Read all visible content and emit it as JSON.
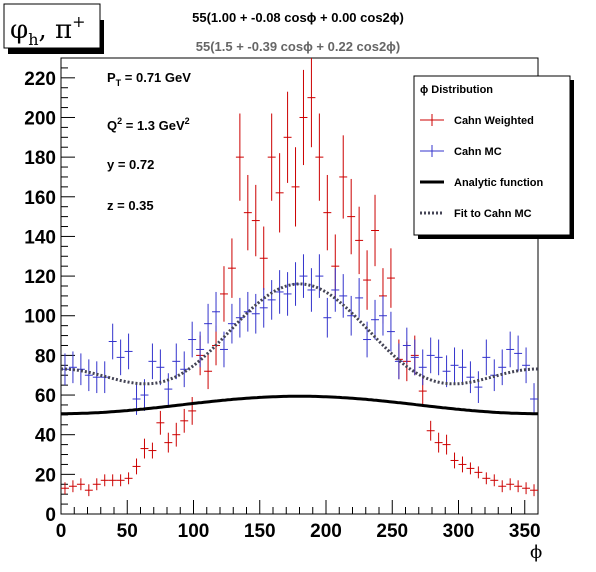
{
  "title_box": {
    "text": "φ",
    "sub": "h",
    "rest": ", π",
    "sup": "+"
  },
  "fit_labels": {
    "line1": "55(1.00 + -0.08 cosϕ + 0.00 cos2ϕ)",
    "line2": "55(1.5 + -0.39 cosϕ + 0.22 cos2ϕ)"
  },
  "annotations": {
    "pt": {
      "main": "P",
      "sub": "T",
      "rest": " = 0.71 GeV"
    },
    "q2": {
      "main": "Q",
      "sup": "2",
      "rest": " = 1.3 GeV",
      "sup2": "2"
    },
    "y": "y = 0.72",
    "z": "z = 0.35"
  },
  "legend": {
    "title": "ϕ Distribution",
    "entries": [
      "Cahn Weighted",
      "Cahn MC",
      "Analytic function",
      "Fit to Cahn MC"
    ]
  },
  "colors": {
    "red": "#cc0000",
    "blue": "#3333cc",
    "black": "#000000",
    "dotted": "#444455"
  },
  "chart_data": {
    "type": "scatter",
    "xlabel": "ϕ",
    "ylabel": "",
    "xlim": [
      0,
      360
    ],
    "ylim": [
      0,
      230
    ],
    "xticks": [
      0,
      50,
      100,
      150,
      200,
      250,
      300,
      350
    ],
    "yticks": [
      0,
      20,
      40,
      60,
      80,
      100,
      120,
      140,
      160,
      180,
      200,
      220
    ],
    "bin_width": 6,
    "x": [
      3,
      9,
      15,
      21,
      27,
      33,
      39,
      45,
      51,
      57,
      63,
      69,
      75,
      81,
      87,
      93,
      99,
      105,
      111,
      117,
      123,
      129,
      135,
      141,
      147,
      153,
      159,
      165,
      171,
      177,
      183,
      189,
      195,
      201,
      207,
      213,
      219,
      225,
      231,
      237,
      243,
      249,
      255,
      261,
      267,
      273,
      279,
      285,
      291,
      297,
      303,
      309,
      315,
      321,
      327,
      333,
      339,
      345,
      351,
      357
    ],
    "series": [
      {
        "name": "Cahn Weighted",
        "values": [
          13,
          14,
          15,
          12,
          15,
          17,
          17,
          17,
          18,
          24,
          33,
          32,
          46,
          36,
          40,
          47,
          52,
          80,
          72,
          85,
          111,
          124,
          180,
          152,
          148,
          129,
          180,
          162,
          190,
          165,
          200,
          210,
          180,
          152,
          125,
          170,
          150,
          138,
          118,
          143,
          110,
          119,
          78,
          77,
          80,
          62,
          42,
          36,
          35,
          27,
          25,
          23,
          21,
          18,
          17,
          14,
          15,
          14,
          13,
          12
        ],
        "errors": [
          3,
          3,
          3,
          3,
          3,
          3,
          3,
          3,
          3,
          4,
          5,
          4,
          6,
          5,
          6,
          6,
          7,
          10,
          9,
          10,
          14,
          15,
          22,
          19,
          18,
          16,
          22,
          20,
          23,
          20,
          24,
          25,
          22,
          19,
          16,
          21,
          19,
          17,
          15,
          18,
          14,
          15,
          10,
          10,
          10,
          8,
          5,
          5,
          5,
          4,
          4,
          3,
          3,
          3,
          3,
          3,
          3,
          3,
          3,
          3
        ]
      },
      {
        "name": "Cahn MC",
        "values": [
          73,
          74,
          73,
          70,
          69,
          69,
          87,
          79,
          82,
          58,
          60,
          77,
          74,
          63,
          77,
          73,
          88,
          83,
          96,
          102,
          83,
          96,
          99,
          102,
          101,
          104,
          108,
          112,
          111,
          116,
          120,
          113,
          120,
          99,
          113,
          110,
          100,
          109,
          88,
          98,
          100,
          92,
          77,
          85,
          79,
          74,
          80,
          79,
          72,
          75,
          74,
          69,
          64,
          79,
          70,
          74,
          83,
          81,
          75,
          58
        ],
        "errors": [
          8,
          8,
          8,
          8,
          8,
          8,
          9,
          9,
          9,
          8,
          8,
          9,
          9,
          8,
          9,
          9,
          9,
          9,
          10,
          10,
          9,
          10,
          10,
          10,
          10,
          10,
          10,
          11,
          11,
          11,
          11,
          11,
          11,
          10,
          11,
          11,
          10,
          10,
          9,
          10,
          10,
          10,
          9,
          9,
          9,
          9,
          9,
          9,
          8,
          9,
          9,
          8,
          8,
          9,
          8,
          9,
          9,
          9,
          9,
          8
        ]
      },
      {
        "name": "Analytic function",
        "formula": "55*(1.00 - 0.08*cos(phi) + 0.00*cos(2*phi))"
      },
      {
        "name": "Fit to Cahn MC",
        "formula": "55*(1.5 - 0.39*cos(phi) + 0.22*cos(2*phi))"
      }
    ]
  }
}
